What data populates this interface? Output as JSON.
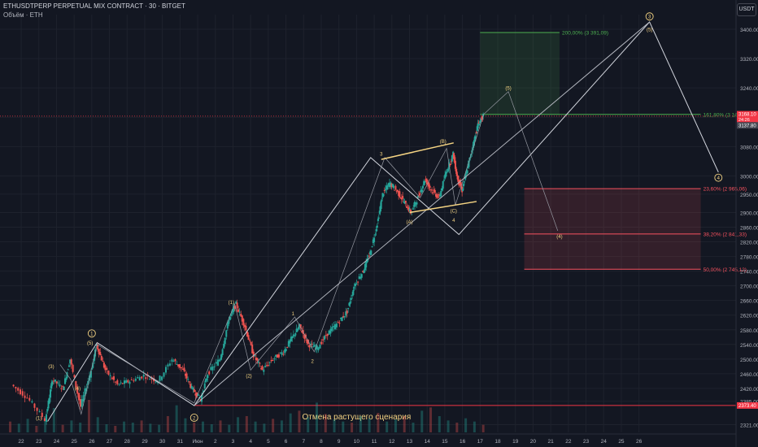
{
  "header": {
    "symbol_line": "ETHUSDTPERP PERPETUAL MIX CONTRACT · 30 · BITGET",
    "volume_line": "Объём · ETH",
    "currency": "USDT"
  },
  "chart_data": {
    "type": "candlestick",
    "title": "",
    "ylim": [
      2300,
      3440
    ],
    "y_ticks": [
      3400,
      3320,
      3240,
      3160,
      3080,
      3000,
      2950,
      2900,
      2860,
      2820,
      2780,
      2740,
      2700,
      2660,
      2620,
      2580,
      2540,
      2500,
      2460,
      2420,
      2385,
      2321
    ],
    "x_ticks": [
      {
        "label": "22",
        "day": -8
      },
      {
        "label": "23",
        "day": -7
      },
      {
        "label": "24",
        "day": -6
      },
      {
        "label": "25",
        "day": -5
      },
      {
        "label": "26",
        "day": -4
      },
      {
        "label": "27",
        "day": -3
      },
      {
        "label": "28",
        "day": -2
      },
      {
        "label": "29",
        "day": -1
      },
      {
        "label": "30",
        "day": 0
      },
      {
        "label": "31",
        "day": 1
      },
      {
        "label": "Июн",
        "day": 2
      },
      {
        "label": "2",
        "day": 3
      },
      {
        "label": "3",
        "day": 4
      },
      {
        "label": "4",
        "day": 5
      },
      {
        "label": "5",
        "day": 6
      },
      {
        "label": "6",
        "day": 7
      },
      {
        "label": "7",
        "day": 8
      },
      {
        "label": "8",
        "day": 9
      },
      {
        "label": "9",
        "day": 10
      },
      {
        "label": "10",
        "day": 11
      },
      {
        "label": "11",
        "day": 12
      },
      {
        "label": "12",
        "day": 13
      },
      {
        "label": "13",
        "day": 14
      },
      {
        "label": "14",
        "day": 15
      },
      {
        "label": "15",
        "day": 16
      },
      {
        "label": "16",
        "day": 17
      },
      {
        "label": "17",
        "day": 18
      },
      {
        "label": "18",
        "day": 19
      },
      {
        "label": "19",
        "day": 20
      },
      {
        "label": "20",
        "day": 21
      },
      {
        "label": "21",
        "day": 22
      },
      {
        "label": "22",
        "day": 23
      },
      {
        "label": "23",
        "day": 24
      },
      {
        "label": "24",
        "day": 25
      },
      {
        "label": "25",
        "day": 26
      },
      {
        "label": "26",
        "day": 27
      }
    ],
    "price_path": [
      [
        -8.5,
        2430
      ],
      [
        -7.6,
        2395
      ],
      [
        -6.6,
        2335
      ],
      [
        -6.2,
        2445
      ],
      [
        -5.6,
        2420
      ],
      [
        -5.2,
        2500
      ],
      [
        -4.6,
        2370
      ],
      [
        -4.0,
        2470
      ],
      [
        -3.7,
        2540
      ],
      [
        -3.2,
        2470
      ],
      [
        -2.5,
        2430
      ],
      [
        -1.8,
        2440
      ],
      [
        -1.0,
        2455
      ],
      [
        -0.2,
        2440
      ],
      [
        0.6,
        2500
      ],
      [
        1.2,
        2470
      ],
      [
        1.7,
        2420
      ],
      [
        2.2,
        2390
      ],
      [
        2.6,
        2460
      ],
      [
        3.3,
        2500
      ],
      [
        3.8,
        2610
      ],
      [
        4.2,
        2650
      ],
      [
        4.7,
        2590
      ],
      [
        5.2,
        2510
      ],
      [
        5.7,
        2470
      ],
      [
        6.3,
        2500
      ],
      [
        6.9,
        2520
      ],
      [
        7.4,
        2560
      ],
      [
        7.8,
        2590
      ],
      [
        8.3,
        2540
      ],
      [
        8.8,
        2530
      ],
      [
        9.4,
        2570
      ],
      [
        10.0,
        2600
      ],
      [
        10.5,
        2630
      ],
      [
        10.9,
        2700
      ],
      [
        11.4,
        2740
      ],
      [
        11.8,
        2790
      ],
      [
        12.2,
        2870
      ],
      [
        12.5,
        2950
      ],
      [
        12.9,
        2980
      ],
      [
        13.3,
        2960
      ],
      [
        13.7,
        2930
      ],
      [
        14.1,
        2900
      ],
      [
        14.5,
        2940
      ],
      [
        14.9,
        2990
      ],
      [
        15.3,
        2960
      ],
      [
        15.7,
        2940
      ],
      [
        16.1,
        3010
      ],
      [
        16.5,
        3060
      ],
      [
        16.7,
        3000
      ],
      [
        17.0,
        2960
      ],
      [
        17.3,
        3020
      ],
      [
        17.6,
        3080
      ],
      [
        17.9,
        3140
      ],
      [
        18.2,
        3163
      ]
    ],
    "volume": [
      20,
      16,
      25,
      12,
      30,
      45,
      14,
      22,
      18,
      60,
      28,
      15,
      12,
      20,
      18,
      22,
      16,
      14,
      30,
      50,
      26,
      18,
      20,
      15,
      22,
      14,
      28,
      30,
      20,
      16,
      25,
      22,
      35,
      40,
      28,
      55,
      34,
      24,
      20,
      18,
      30,
      26,
      36,
      20,
      24,
      30,
      18,
      40,
      46,
      30,
      22,
      18,
      26,
      20,
      14
    ],
    "current_price": 3163.1,
    "price_tags": [
      {
        "price": 3168.1,
        "label": "3168.10",
        "sub": "24:26",
        "color": "#f23645"
      },
      {
        "price": 3137.8,
        "label": "3137.80",
        "color": "#434651"
      },
      {
        "price": 2373.4,
        "label": "2373.40",
        "color": "#f23645"
      }
    ],
    "invalidation_price": 2373.4,
    "invalidation_text": "Отмена растущего сценария",
    "fib_zones": [
      {
        "top": 3391.09,
        "bottom": 3167.74,
        "day_from": 18.0,
        "day_to": 22.5,
        "color": "#4caf50"
      },
      {
        "top": 2965.06,
        "bottom": 2841.33,
        "day_from": 20.5,
        "day_to": 30.5,
        "color": "#f7525f"
      },
      {
        "top": 2841.33,
        "bottom": 2745.12,
        "day_from": 20.5,
        "day_to": 30.5,
        "color": "#f7525f"
      }
    ],
    "fib_levels": [
      {
        "price": 3391.09,
        "label": "200,00% (3 391,09)",
        "color": "#4caf50",
        "day_from": 18.0,
        "day_to": 22.5
      },
      {
        "price": 3167.74,
        "label": "161,80% (3 167,74)",
        "color": "#4caf50",
        "day_from": 18.0,
        "day_to": 30.5
      },
      {
        "price": 2965.06,
        "label": "23,60% (2 965,06)",
        "color": "#f7525f",
        "day_from": 20.5,
        "day_to": 30.5
      },
      {
        "price": 2841.33,
        "label": "38,20% (2 841,33)",
        "color": "#f7525f",
        "day_from": 20.5,
        "day_to": 30.5
      },
      {
        "price": 2745.12,
        "label": "50,00% (2 745,12)",
        "color": "#f7525f",
        "day_from": 20.5,
        "day_to": 30.5
      }
    ],
    "wave_path": [
      [
        -6.5,
        2330
      ],
      [
        -3.7,
        2545
      ],
      [
        1.8,
        2373
      ],
      [
        11.8,
        3050
      ],
      [
        16.8,
        2840
      ],
      [
        27.6,
        3420
      ],
      [
        31.5,
        3010
      ]
    ],
    "sub_wave_path": [
      [
        -5.8,
        2485
      ],
      [
        -5.2,
        2445
      ],
      [
        -4.6,
        2350
      ],
      [
        -3.7,
        2540
      ],
      [
        1.8,
        2380
      ],
      [
        4.1,
        2650
      ],
      [
        5.0,
        2470
      ],
      [
        7.5,
        2615
      ],
      [
        8.6,
        2520
      ],
      [
        12.6,
        3050
      ],
      [
        14.6,
        2940
      ],
      [
        16.1,
        3075
      ],
      [
        16.6,
        2920
      ],
      [
        18.2,
        3168
      ],
      [
        19.6,
        3230
      ],
      [
        22.4,
        2850
      ]
    ],
    "channel": [
      {
        "from": [
          12.4,
          3045
        ],
        "to": [
          16.5,
          3090
        ],
        "color": "#f5d483"
      },
      {
        "from": [
          14.0,
          2900
        ],
        "to": [
          17.8,
          2930
        ],
        "color": "#f5d483"
      }
    ],
    "trend_line": {
      "from": [
        1.8,
        2373
      ],
      "to": [
        27.6,
        3420
      ],
      "color": "#b2b5be"
    },
    "wave_labels": [
      {
        "text": "1",
        "day": -4.0,
        "price": 2570,
        "circle": true
      },
      {
        "text": "(1)",
        "day": -7.0,
        "price": 2340
      },
      {
        "text": "(3)",
        "day": -6.3,
        "price": 2480
      },
      {
        "text": "(4)",
        "day": -4.8,
        "price": 2420
      },
      {
        "text": "(5)",
        "day": -4.1,
        "price": 2545
      },
      {
        "text": "2",
        "day": 1.8,
        "price": 2340,
        "circle": true
      },
      {
        "text": "(1)",
        "day": 3.9,
        "price": 2655
      },
      {
        "text": "(2)",
        "day": 4.9,
        "price": 2455
      },
      {
        "text": "1",
        "day": 7.4,
        "price": 2625
      },
      {
        "text": "2",
        "day": 8.5,
        "price": 2495
      },
      {
        "text": "3",
        "day": 12.4,
        "price": 3060
      },
      {
        "text": "(A)",
        "day": 14.0,
        "price": 2875
      },
      {
        "text": "(B)",
        "day": 15.9,
        "price": 3095
      },
      {
        "text": "(C)",
        "day": 16.5,
        "price": 2905
      },
      {
        "text": "4",
        "day": 16.5,
        "price": 2880
      },
      {
        "text": "(5)",
        "day": 19.6,
        "price": 3240
      },
      {
        "text": "(4)",
        "day": 22.5,
        "price": 2835
      },
      {
        "text": "(5)",
        "day": 27.6,
        "price": 3400
      },
      {
        "text": "3",
        "day": 27.6,
        "price": 3435,
        "circle": true
      },
      {
        "text": "4",
        "day": 31.5,
        "price": 2995,
        "circle": true
      }
    ]
  },
  "colors": {
    "bg": "#131722",
    "up": "#26a69a",
    "down": "#ef5350",
    "grid": "#1e222d",
    "text": "#b2b5be",
    "label": "#f5d483"
  }
}
